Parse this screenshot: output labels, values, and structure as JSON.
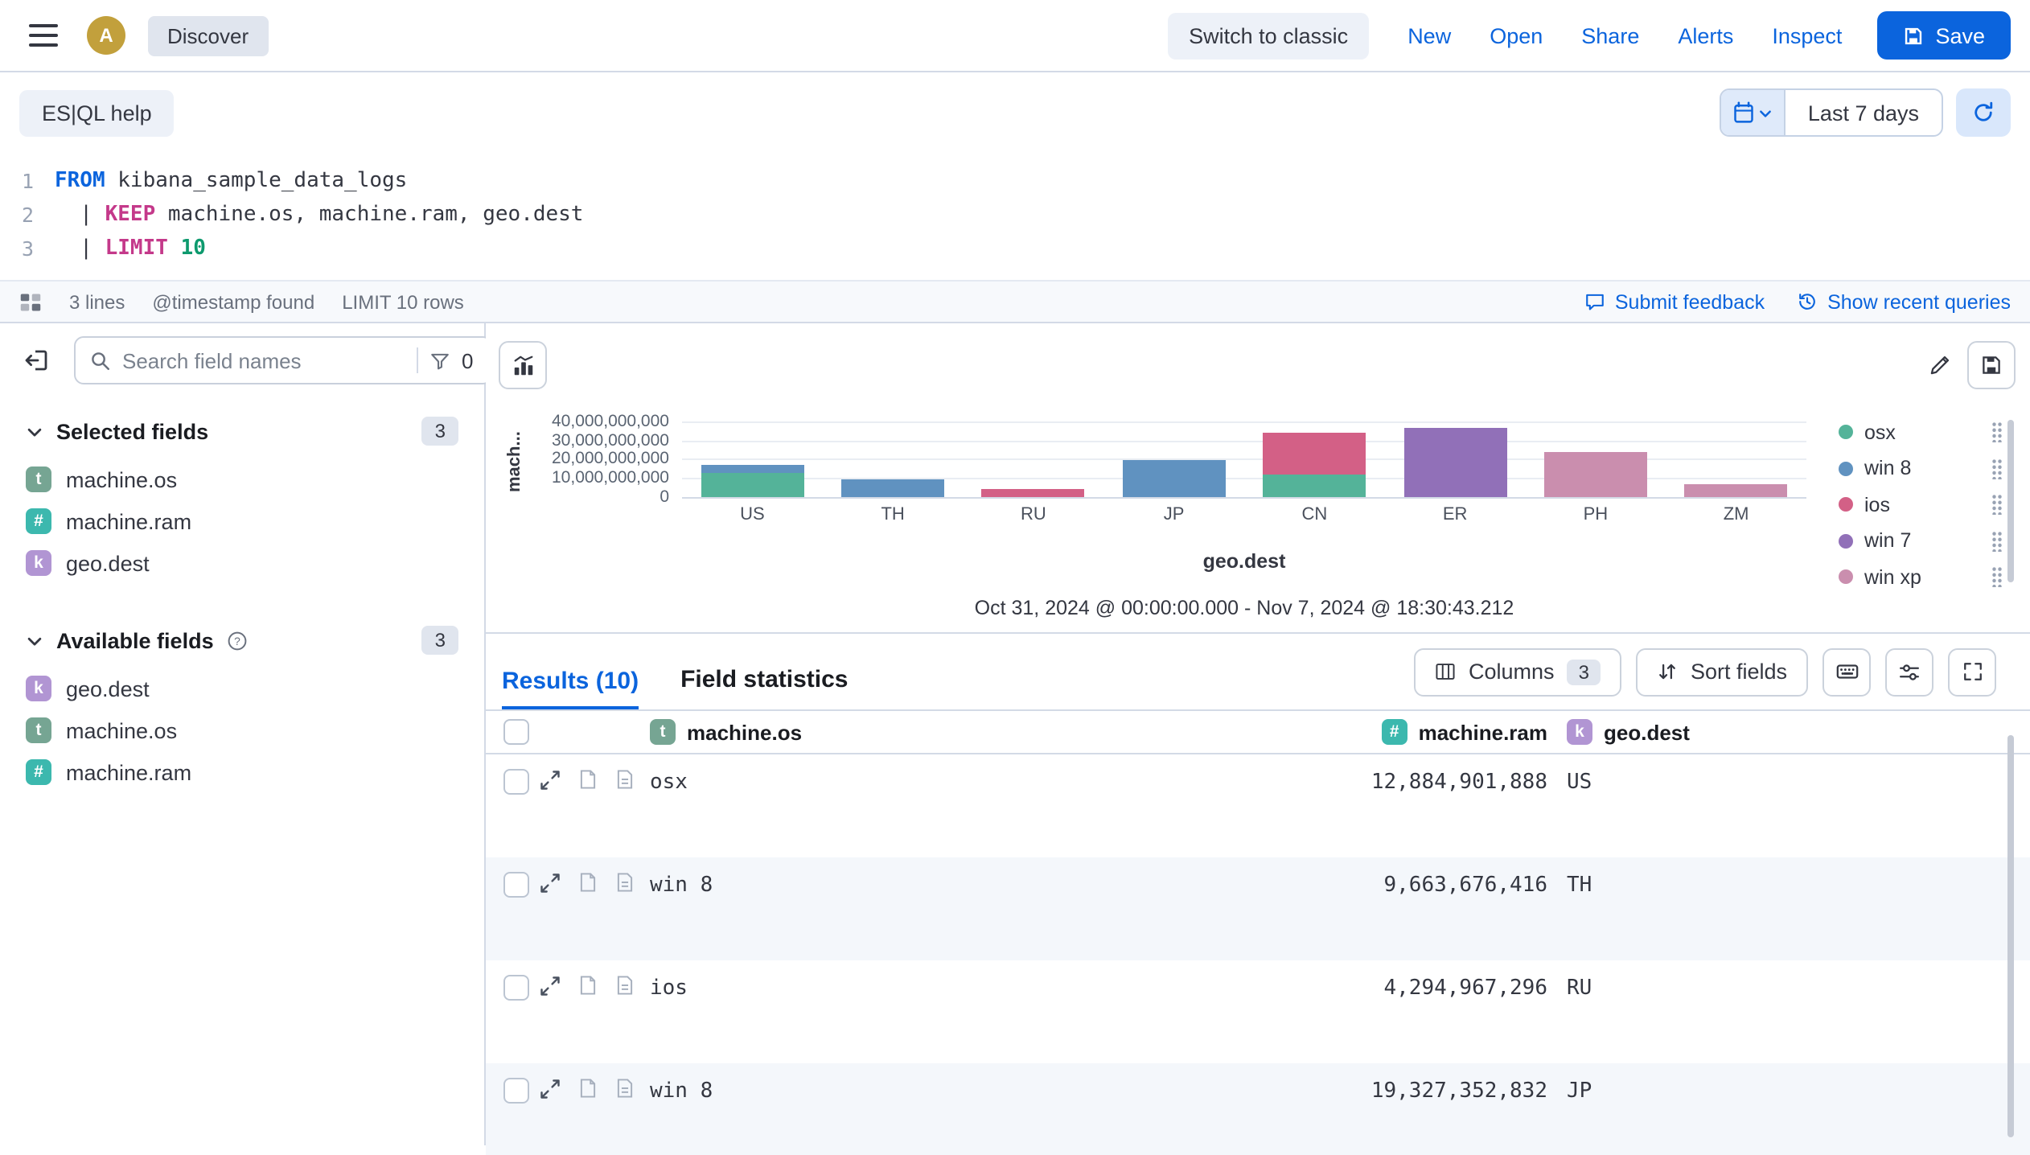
{
  "colors": {
    "accent": "#0B64DD",
    "text": "#343741",
    "subdued": "#69707D",
    "border": "#D3DAE6",
    "stripe": "#F4F7FB",
    "badge": "#E0E5EE"
  },
  "header": {
    "avatar_initial": "A",
    "breadcrumb": "Discover",
    "switch_classic": "Switch to classic",
    "links": [
      "New",
      "Open",
      "Share",
      "Alerts",
      "Inspect"
    ],
    "save": "Save"
  },
  "querybar": {
    "help": "ES|QL help",
    "time_range": "Last 7 days"
  },
  "editor": {
    "lines": [
      {
        "num": "1",
        "t1": "FROM",
        "t2": " kibana_sample_data_logs"
      },
      {
        "num": "2",
        "t1": "  | ",
        "t2": "KEEP",
        "t3": " machine.os, machine.ram, geo.dest"
      },
      {
        "num": "3",
        "t1": "  | ",
        "t2": "LIMIT",
        "t3": " ",
        "t4": "10"
      }
    ]
  },
  "statusbar": {
    "lines": "3 lines",
    "timestamp": "@timestamp found",
    "limit": "LIMIT 10 rows",
    "feedback": "Submit feedback",
    "recent": "Show recent queries"
  },
  "sidebar": {
    "search_placeholder": "Search field names",
    "filter_count": "0",
    "selected_label": "Selected fields",
    "selected_count": "3",
    "selected_fields": [
      {
        "type": "t",
        "name": "machine.os"
      },
      {
        "type": "#",
        "name": "machine.ram"
      },
      {
        "type": "k",
        "name": "geo.dest"
      }
    ],
    "available_label": "Available fields",
    "available_count": "3",
    "available_fields": [
      {
        "type": "k",
        "name": "geo.dest"
      },
      {
        "type": "t",
        "name": "machine.os"
      },
      {
        "type": "#",
        "name": "machine.ram"
      }
    ]
  },
  "chart_data": {
    "type": "bar",
    "stacked": true,
    "xlabel": "geo.dest",
    "ylabel": "mach...",
    "categories": [
      "US",
      "TH",
      "RU",
      "JP",
      "CN",
      "ER",
      "PH",
      "ZM"
    ],
    "series": [
      {
        "name": "osx",
        "color": "#54B399",
        "values": [
          12884901888,
          0,
          0,
          0,
          11811160064,
          0,
          0,
          0
        ]
      },
      {
        "name": "win 8",
        "color": "#6092C0",
        "values": [
          4294967296,
          9663676416,
          0,
          19327352832,
          0,
          0,
          0,
          0
        ]
      },
      {
        "name": "ios",
        "color": "#D36086",
        "values": [
          0,
          0,
          4294967296,
          0,
          22548578304,
          0,
          0,
          0
        ]
      },
      {
        "name": "win 7",
        "color": "#9170B8",
        "values": [
          0,
          0,
          0,
          0,
          0,
          36507222016,
          0,
          0
        ]
      },
      {
        "name": "win xp",
        "color": "#CA8EAE",
        "values": [
          0,
          0,
          0,
          0,
          0,
          0,
          23622320128,
          6442450944
        ]
      }
    ],
    "y_ticks": [
      0,
      10000000000,
      20000000000,
      30000000000,
      40000000000
    ],
    "y_tick_labels": [
      "0",
      "10,000,000,000",
      "20,000,000,000",
      "30,000,000,000",
      "40,000,000,000"
    ],
    "ylim": [
      0,
      42500000000
    ],
    "grid": true,
    "legend_position": "right",
    "legend": [
      "osx",
      "win 8",
      "ios",
      "win 7",
      "win xp"
    ],
    "subtitle": "Oct 31, 2024 @ 00:00:00.000 - Nov 7, 2024 @ 18:30:43.212"
  },
  "results": {
    "tab_results": "Results (10)",
    "tab_stats": "Field statistics",
    "columns_label": "Columns",
    "columns_count": "3",
    "sort_label": "Sort fields",
    "header": [
      {
        "type": "t",
        "name": "machine.os"
      },
      {
        "type": "#",
        "name": "machine.ram"
      },
      {
        "type": "k",
        "name": "geo.dest"
      }
    ],
    "rows": [
      {
        "os": "osx",
        "ram": "12,884,901,888",
        "dest": "US"
      },
      {
        "os": "win 8",
        "ram": "9,663,676,416",
        "dest": "TH"
      },
      {
        "os": "ios",
        "ram": "4,294,967,296",
        "dest": "RU"
      },
      {
        "os": "win 8",
        "ram": "19,327,352,832",
        "dest": "JP"
      }
    ]
  }
}
